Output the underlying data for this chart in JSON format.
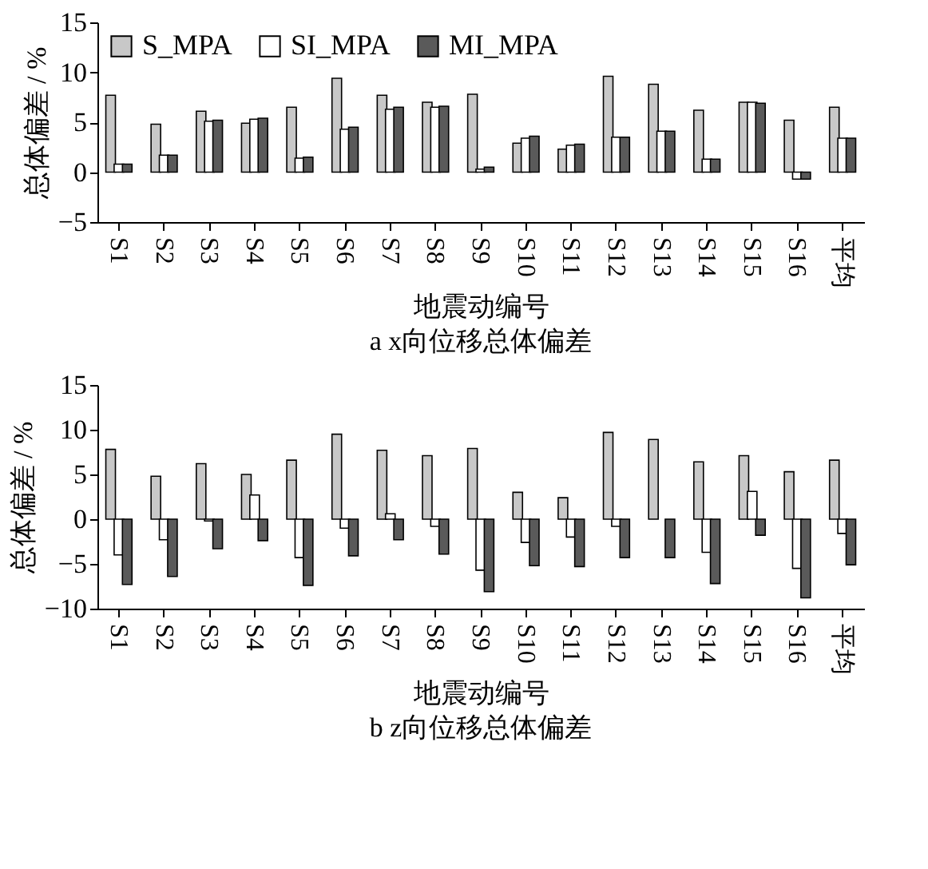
{
  "chart_data": [
    {
      "type": "bar",
      "title": "a x向位移总体偏差",
      "xlabel": "地震动编号",
      "ylabel": "总体偏差 / %",
      "categories": [
        "S1",
        "S2",
        "S3",
        "S4",
        "S5",
        "S6",
        "S7",
        "S8",
        "S9",
        "S10",
        "S11",
        "S12",
        "S13",
        "S14",
        "S15",
        "S16",
        "平均"
      ],
      "ylim": [
        -5,
        15
      ],
      "yticks": [
        -5,
        0,
        5,
        10,
        15
      ],
      "grid": false,
      "legend": "top left",
      "series": [
        {
          "name": "S_MPA",
          "color": "#c8c8c8",
          "values": [
            7.7,
            4.8,
            6.1,
            4.9,
            6.5,
            9.4,
            7.7,
            7.0,
            7.8,
            2.9,
            2.3,
            9.6,
            8.8,
            6.2,
            7.0,
            5.2,
            6.5
          ]
        },
        {
          "name": "SI_MPA",
          "color": "#ffffff",
          "values": [
            0.8,
            1.7,
            5.1,
            5.3,
            1.4,
            4.3,
            6.3,
            6.5,
            0.3,
            3.4,
            2.7,
            3.5,
            4.1,
            1.3,
            7.0,
            -0.7,
            3.4
          ]
        },
        {
          "name": "MI_MPA",
          "color": "#5a5a5a",
          "values": [
            0.8,
            1.7,
            5.2,
            5.4,
            1.5,
            4.5,
            6.5,
            6.6,
            0.5,
            3.6,
            2.8,
            3.5,
            4.1,
            1.3,
            6.9,
            -0.7,
            3.4
          ]
        }
      ]
    },
    {
      "type": "bar",
      "title": "b z向位移总体偏差",
      "xlabel": "地震动编号",
      "ylabel": "总体偏差 / %",
      "categories": [
        "S1",
        "S2",
        "S3",
        "S4",
        "S5",
        "S6",
        "S7",
        "S8",
        "S9",
        "S10",
        "S11",
        "S12",
        "S13",
        "S14",
        "S15",
        "S16",
        "平均"
      ],
      "ylim": [
        -10,
        15
      ],
      "yticks": [
        -10,
        -5,
        0,
        5,
        10,
        15
      ],
      "grid": false,
      "legend": "top left",
      "series": [
        {
          "name": "S_MPA",
          "color": "#c8c8c8",
          "values": [
            7.8,
            4.8,
            6.2,
            5.0,
            6.6,
            9.5,
            7.7,
            7.1,
            7.9,
            3.0,
            2.4,
            9.7,
            8.9,
            6.4,
            7.1,
            5.3,
            6.6
          ]
        },
        {
          "name": "SI_MPA",
          "color": "#ffffff",
          "values": [
            -4.0,
            -2.3,
            -0.2,
            2.7,
            -4.3,
            -1.0,
            0.6,
            -0.8,
            -5.7,
            -2.6,
            -2.0,
            -0.8,
            null,
            -3.7,
            3.1,
            -5.5,
            -1.6
          ]
        },
        {
          "name": "MI_MPA",
          "color": "#5a5a5a",
          "values": [
            -7.3,
            -6.4,
            -3.3,
            -2.4,
            -7.4,
            -4.1,
            -2.3,
            -3.9,
            -8.1,
            -5.2,
            -5.3,
            -4.3,
            -4.3,
            -7.2,
            -1.8,
            -8.8,
            -5.1
          ]
        }
      ]
    }
  ]
}
